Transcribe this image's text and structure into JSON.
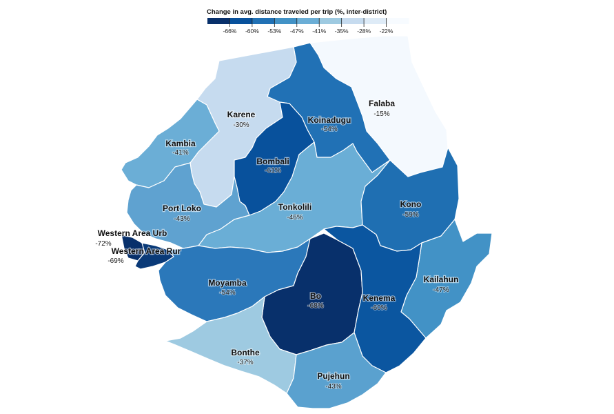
{
  "legend": {
    "title": "Change in avg. distance traveled per trip (%, inter-district)",
    "ticks": [
      "-66%",
      "-60%",
      "-53%",
      "-47%",
      "-41%",
      "-35%",
      "-28%",
      "-22%"
    ],
    "colors": [
      "#08306b",
      "#08519c",
      "#2171b5",
      "#4292c6",
      "#6baed6",
      "#9ecae1",
      "#c6dbef",
      "#deebf7",
      "#f7fbff"
    ]
  },
  "districts": [
    {
      "id": "falaba",
      "name": "Falaba",
      "value": "-15%",
      "color": "#f4f9fe"
    },
    {
      "id": "koinadugu",
      "name": "Koinadugu",
      "value": "-54%",
      "color": "#2171b5"
    },
    {
      "id": "karene",
      "name": "Karene",
      "value": "-30%",
      "color": "#c6dbef"
    },
    {
      "id": "kambia",
      "name": "Kambia",
      "value": "-41%",
      "color": "#6baed6"
    },
    {
      "id": "bombali",
      "name": "Bombali",
      "value": "-61%",
      "color": "#08519c"
    },
    {
      "id": "port-loko",
      "name": "Port Loko",
      "value": "-43%",
      "color": "#5fa2d0"
    },
    {
      "id": "tonkolili",
      "name": "Tonkolili",
      "value": "-46%",
      "color": "#6aaed6"
    },
    {
      "id": "kono",
      "name": "Kono",
      "value": "-59%",
      "color": "#1f6fb2"
    },
    {
      "id": "western-area-urban",
      "name": "Western Area Urb",
      "value": "-72%",
      "color": "#08306b"
    },
    {
      "id": "western-area-rural",
      "name": "Western Area Rur",
      "value": "-69%",
      "color": "#0a3a78"
    },
    {
      "id": "moyamba",
      "name": "Moyamba",
      "value": "-54%",
      "color": "#2b78ba"
    },
    {
      "id": "bo",
      "name": "Bo",
      "value": "-68%",
      "color": "#08306b"
    },
    {
      "id": "kenema",
      "name": "Kenema",
      "value": "-60%",
      "color": "#0b56a0"
    },
    {
      "id": "kailahun",
      "name": "Kailahun",
      "value": "-47%",
      "color": "#4292c6"
    },
    {
      "id": "bonthe",
      "name": "Bonthe",
      "value": "-37%",
      "color": "#9ecae1"
    },
    {
      "id": "pujehun",
      "name": "Pujehun",
      "value": "-43%",
      "color": "#5aa1cf"
    }
  ]
}
